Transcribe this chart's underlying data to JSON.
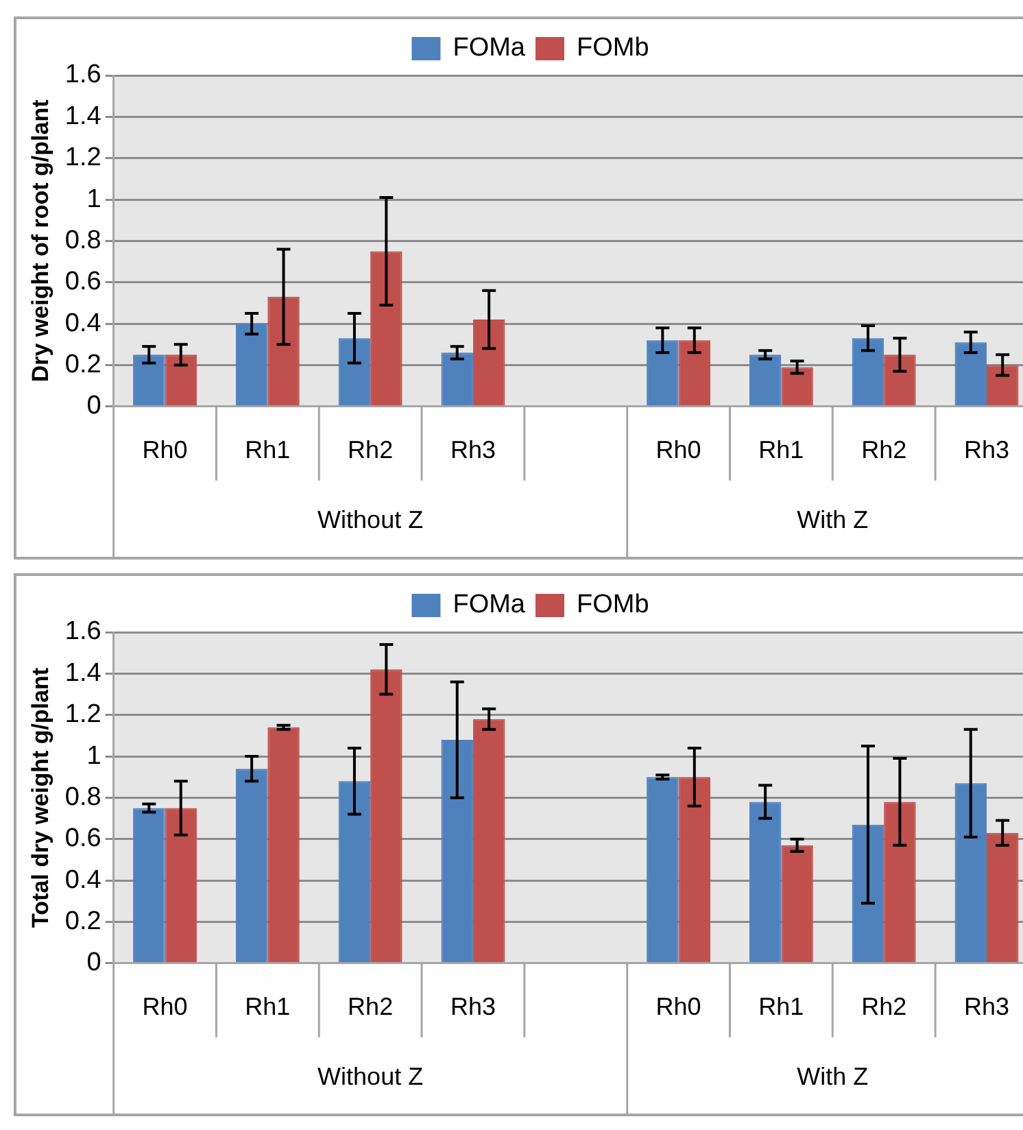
{
  "chart_data": [
    {
      "type": "bar",
      "ylabel": "Dry weight of root g/plant",
      "categories": [
        "Rh0",
        "Rh1",
        "Rh2",
        "Rh3",
        null,
        "Rh0",
        "Rh1",
        "Rh2",
        "Rh3"
      ],
      "series": [
        {
          "name": "FOMa",
          "color": "#4f81bd",
          "values": [
            0.25,
            0.4,
            0.33,
            0.26,
            null,
            0.32,
            0.25,
            0.33,
            0.31
          ],
          "errors": [
            0.04,
            0.05,
            0.12,
            0.03,
            null,
            0.06,
            0.02,
            0.06,
            0.05
          ]
        },
        {
          "name": "FOMb",
          "color": "#c0504d",
          "values": [
            0.25,
            0.53,
            0.75,
            0.42,
            null,
            0.32,
            0.19,
            0.25,
            0.2
          ],
          "errors": [
            0.05,
            0.23,
            0.26,
            0.14,
            null,
            0.06,
            0.03,
            0.08,
            0.05
          ]
        }
      ],
      "ylim": [
        0,
        1.6
      ],
      "yticks": [
        0,
        0.2,
        0.4,
        0.6,
        0.8,
        1,
        1.2,
        1.4,
        1.6
      ],
      "grid": "y",
      "legend": "top",
      "annotations": [
        "Without Z",
        "With Z"
      ]
    },
    {
      "type": "bar",
      "ylabel": "Total dry weight g/plant",
      "categories": [
        "Rh0",
        "Rh1",
        "Rh2",
        "Rh3",
        null,
        "Rh0",
        "Rh1",
        "Rh2",
        "Rh3"
      ],
      "series": [
        {
          "name": "FOMa",
          "color": "#4f81bd",
          "values": [
            0.75,
            0.94,
            0.88,
            1.08,
            null,
            0.9,
            0.78,
            0.67,
            0.87
          ],
          "errors": [
            0.02,
            0.06,
            0.16,
            0.28,
            null,
            0.01,
            0.08,
            0.38,
            0.26
          ]
        },
        {
          "name": "FOMb",
          "color": "#c0504d",
          "values": [
            0.75,
            1.14,
            1.42,
            1.18,
            null,
            0.9,
            0.57,
            0.78,
            0.63
          ],
          "errors": [
            0.13,
            0.01,
            0.12,
            0.05,
            null,
            0.14,
            0.03,
            0.21,
            0.06
          ]
        }
      ],
      "ylim": [
        0,
        1.6
      ],
      "yticks": [
        0,
        0.2,
        0.4,
        0.6,
        0.8,
        1,
        1.2,
        1.4,
        1.6
      ],
      "grid": "y",
      "legend": "top",
      "annotations": [
        "Without Z",
        "With Z"
      ]
    }
  ]
}
